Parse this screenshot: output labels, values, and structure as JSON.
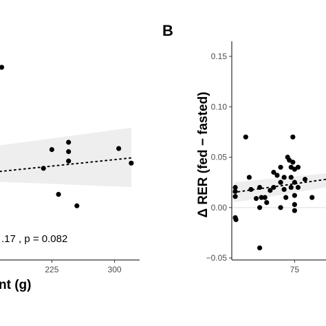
{
  "chart_data": [
    {
      "panel": "",
      "type": "scatter",
      "xlabel": "nt (g)",
      "ylabel": "",
      "xlim": [
        163,
        330
      ],
      "ylim": [
        -0.05,
        0.16
      ],
      "x_ticks": [
        225,
        300
      ],
      "x_tick_labels": [
        "225",
        "300"
      ],
      "y_ticks": [],
      "annotation": ".17 , p = 0.082",
      "points": [
        {
          "x": 165,
          "y": 0.135
        },
        {
          "x": 215,
          "y": 0.038
        },
        {
          "x": 225,
          "y": 0.056
        },
        {
          "x": 245,
          "y": 0.063
        },
        {
          "x": 245,
          "y": 0.054
        },
        {
          "x": 245,
          "y": 0.045
        },
        {
          "x": 233,
          "y": 0.013
        },
        {
          "x": 255,
          "y": 0.002
        },
        {
          "x": 305,
          "y": 0.057
        },
        {
          "x": 320,
          "y": 0.043
        }
      ],
      "trend": {
        "x": [
          163,
          320
        ],
        "y": [
          0.035,
          0.048
        ]
      },
      "ci_band": {
        "x": [
          163,
          320
        ],
        "lower": [
          0.025,
          0.02
        ],
        "upper": [
          0.06,
          0.077
        ]
      }
    },
    {
      "panel": "B",
      "type": "scatter",
      "xlabel": "",
      "ylabel": "Δ RER (fed − fasted)",
      "xlim": [
        57,
        84
      ],
      "ylim": [
        -0.052,
        0.165
      ],
      "x_ticks": [
        75
      ],
      "x_tick_labels": [
        "75"
      ],
      "y_ticks": [
        -0.05,
        0.0,
        0.05,
        0.1,
        0.15
      ],
      "y_tick_labels": [
        "−0.05",
        "0.00",
        "0.05",
        "0.10",
        "0.15"
      ],
      "reference_line_y": 0,
      "points": [
        {
          "x": 58,
          "y": 0.02
        },
        {
          "x": 58,
          "y": 0.016
        },
        {
          "x": 58,
          "y": 0.011
        },
        {
          "x": 58,
          "y": -0.01
        },
        {
          "x": 58.2,
          "y": -0.012
        },
        {
          "x": 61,
          "y": 0.07
        },
        {
          "x": 62,
          "y": 0.03
        },
        {
          "x": 62.5,
          "y": 0.018
        },
        {
          "x": 64,
          "y": 0.009
        },
        {
          "x": 65,
          "y": 0.02
        },
        {
          "x": 65.5,
          "y": 0.01
        },
        {
          "x": 65,
          "y": 0.0
        },
        {
          "x": 65,
          "y": -0.04
        },
        {
          "x": 66.5,
          "y": 0.01
        },
        {
          "x": 67,
          "y": 0.005
        },
        {
          "x": 68,
          "y": 0.017
        },
        {
          "x": 69,
          "y": 0.035
        },
        {
          "x": 69,
          "y": 0.02
        },
        {
          "x": 70,
          "y": 0.032
        },
        {
          "x": 71,
          "y": 0.04
        },
        {
          "x": 71,
          "y": 0.025
        },
        {
          "x": 71,
          "y": 0.0
        },
        {
          "x": 72,
          "y": 0.03
        },
        {
          "x": 72,
          "y": 0.018
        },
        {
          "x": 72.5,
          "y": 0.01
        },
        {
          "x": 73,
          "y": 0.05
        },
        {
          "x": 73.5,
          "y": 0.047
        },
        {
          "x": 74,
          "y": 0.04
        },
        {
          "x": 74,
          "y": 0.03
        },
        {
          "x": 74,
          "y": 0.02
        },
        {
          "x": 74.5,
          "y": 0.07
        },
        {
          "x": 74.5,
          "y": 0.045
        },
        {
          "x": 75,
          "y": 0.038
        },
        {
          "x": 75,
          "y": 0.025
        },
        {
          "x": 75,
          "y": 0.012
        },
        {
          "x": 75,
          "y": 0.003
        },
        {
          "x": 75,
          "y": -0.003
        },
        {
          "x": 76,
          "y": 0.04
        },
        {
          "x": 76,
          "y": 0.02
        },
        {
          "x": 78,
          "y": 0.028
        },
        {
          "x": 80,
          "y": 0.01
        }
      ],
      "trend": {
        "x": [
          57.5,
          84
        ],
        "y": [
          0.015,
          0.028
        ]
      },
      "ci_band": {
        "x": [
          57.5,
          84
        ],
        "lower": [
          0.005,
          0.02
        ],
        "upper": [
          0.025,
          0.034
        ]
      }
    }
  ]
}
